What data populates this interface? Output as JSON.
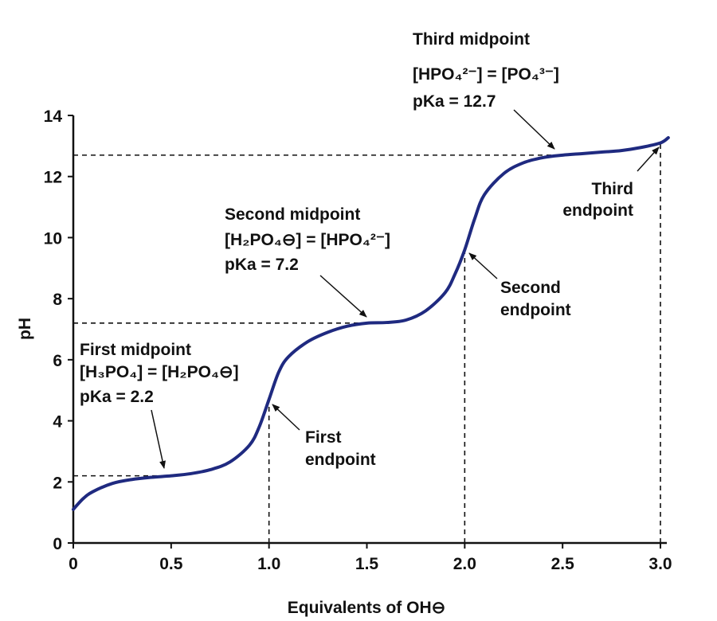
{
  "chart_data": {
    "type": "line",
    "xlabel": "Equivalents of OH⊖",
    "ylabel": "pH",
    "xlim": [
      0,
      3.0
    ],
    "ylim": [
      0,
      14
    ],
    "xticks": [
      "0",
      "0.5",
      "1.0",
      "1.5",
      "2.0",
      "2.5",
      "3.0"
    ],
    "xtick_values": [
      0,
      0.5,
      1.0,
      1.5,
      2.0,
      2.5,
      3.0
    ],
    "yticks": [
      "0",
      "2",
      "4",
      "6",
      "8",
      "10",
      "12",
      "14"
    ],
    "ytick_values": [
      0,
      2,
      4,
      6,
      8,
      10,
      12,
      14
    ],
    "grid": false,
    "line_color": "#1f2a80",
    "series": [
      {
        "x": [
          0,
          0.05,
          0.1,
          0.2,
          0.3,
          0.4,
          0.5,
          0.6,
          0.7,
          0.8,
          0.9,
          0.95,
          1.0,
          1.05,
          1.1,
          1.2,
          1.3,
          1.4,
          1.5,
          1.6,
          1.7,
          1.8,
          1.9,
          1.95,
          2.0,
          2.05,
          2.1,
          2.2,
          2.3,
          2.4,
          2.5,
          2.6,
          2.7,
          2.8,
          2.9,
          3.0,
          3.04
        ],
        "y": [
          1.1,
          1.45,
          1.68,
          1.95,
          2.08,
          2.15,
          2.2,
          2.27,
          2.4,
          2.65,
          3.2,
          3.8,
          4.7,
          5.6,
          6.1,
          6.6,
          6.9,
          7.1,
          7.2,
          7.22,
          7.3,
          7.6,
          8.2,
          8.8,
          9.6,
          10.6,
          11.4,
          12.1,
          12.45,
          12.62,
          12.7,
          12.75,
          12.8,
          12.85,
          12.95,
          13.1,
          13.27
        ]
      }
    ],
    "reference_lines": [
      {
        "x": 0.5,
        "y": 2.2
      },
      {
        "x": 1.5,
        "y": 7.2
      },
      {
        "x": 2.5,
        "y": 12.7
      },
      {
        "x": 1.0,
        "y": 4.7
      },
      {
        "x": 2.0,
        "y": 9.6
      },
      {
        "x": 3.0,
        "y": 13.1
      }
    ],
    "annotations": {
      "first_midpoint": {
        "title": "First midpoint",
        "formula": "[H₃PO₄] = [H₂PO₄⊖]",
        "pka": "pKa = 2.2"
      },
      "first_endpoint": {
        "line1": "First",
        "line2": "endpoint"
      },
      "second_midpoint": {
        "title": "Second midpoint",
        "formula": "[H₂PO₄⊖] = [HPO₄²⁻]",
        "pka": "pKa = 7.2"
      },
      "second_endpoint": {
        "line1": "Second",
        "line2": "endpoint"
      },
      "third_midpoint": {
        "title": "Third midpoint",
        "formula": "[HPO₄²⁻] = [PO₄³⁻]",
        "pka": "pKa = 12.7"
      },
      "third_endpoint": {
        "line1": "Third",
        "line2": "endpoint"
      }
    }
  }
}
